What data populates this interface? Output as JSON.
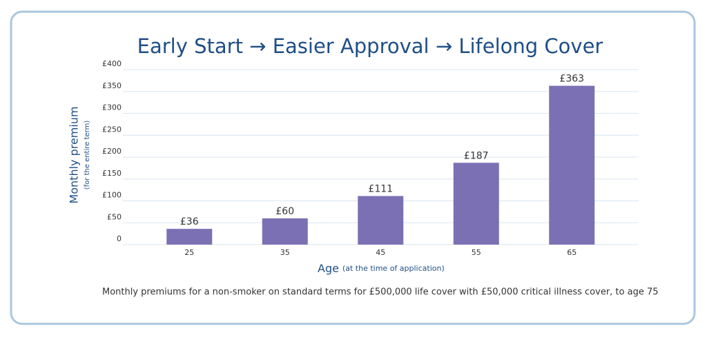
{
  "chart_data": {
    "type": "bar",
    "title": "Early Start → Easier  Approval → Lifelong  Cover",
    "y_label": "Monthly premium",
    "y_sublabel": "(for the entire term)",
    "x_label": "Age",
    "x_sublabel": "(at the time of application)",
    "footnote": "Monthly premiums for a non-smoker on standard terms for £500,000 life cover with £50,000 critical illness cover, to age 75",
    "categories": [
      "25",
      "35",
      "45",
      "55",
      "65"
    ],
    "values": [
      36,
      60,
      111,
      187,
      363
    ],
    "value_labels": [
      "£36",
      "£60",
      "£111",
      "£187",
      "£363"
    ],
    "color": "#7b70b3",
    "ylim": [
      0,
      400
    ],
    "yticks": [
      0,
      {
        "value": 50,
        "label": "£50"
      },
      {
        "value": 100,
        "label": "£100"
      },
      {
        "value": 150,
        "label": "£150"
      },
      {
        "value": 200,
        "label": "£200"
      },
      {
        "value": 250,
        "label": "£250"
      },
      {
        "value": 300,
        "label": "£300"
      },
      {
        "value": 350,
        "label": "£350"
      },
      {
        "value": 400,
        "label": "£400"
      }
    ],
    "grid": true
  }
}
